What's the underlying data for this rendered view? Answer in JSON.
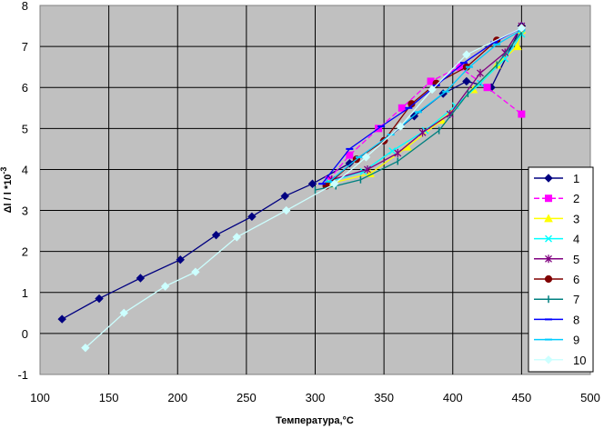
{
  "chart_data": {
    "type": "line",
    "xlabel": "Температура,°С",
    "ylabel_main": "Δl / l *10",
    "ylabel_exp": "-3",
    "xlim": [
      100,
      500
    ],
    "ylim": [
      -1,
      8
    ],
    "x_ticks": [
      100,
      150,
      200,
      250,
      300,
      350,
      400,
      450,
      500
    ],
    "y_ticks": [
      -1,
      0,
      1,
      2,
      3,
      4,
      5,
      6,
      7,
      8
    ],
    "plot_background": "#c0c0c0",
    "grid": true,
    "legend_position": "right",
    "series": [
      {
        "name": "1",
        "color": "#000080",
        "marker": "diamond",
        "dashed": false,
        "x": [
          116,
          143,
          173,
          202,
          228,
          254,
          278,
          298,
          325,
          350,
          372,
          393,
          410,
          428,
          450
        ],
        "y": [
          0.35,
          0.85,
          1.35,
          1.8,
          2.4,
          2.85,
          3.35,
          3.65,
          4.15,
          4.7,
          5.3,
          5.85,
          6.15,
          6.0,
          7.5
        ]
      },
      {
        "name": "2",
        "color": "#ff00ff",
        "marker": "square",
        "dashed": true,
        "x": [
          310,
          325,
          346,
          363,
          384,
          405,
          425,
          450
        ],
        "y": [
          3.75,
          4.35,
          5.0,
          5.5,
          6.15,
          6.5,
          6.0,
          5.35
        ]
      },
      {
        "name": "3",
        "color": "#ffff00",
        "marker": "triangle",
        "dashed": false,
        "x": [
          310,
          340,
          367,
          392,
          415,
          432,
          447,
          450
        ],
        "y": [
          3.65,
          3.9,
          4.55,
          5.2,
          5.95,
          6.55,
          7.0,
          7.4
        ]
      },
      {
        "name": "4",
        "color": "#00ffff",
        "marker": "x",
        "dashed": false,
        "x": [
          310,
          335,
          356,
          380,
          402,
          420,
          438,
          450
        ],
        "y": [
          3.7,
          3.95,
          4.45,
          4.95,
          5.55,
          6.1,
          6.7,
          7.3
        ]
      },
      {
        "name": "5",
        "color": "#800080",
        "marker": "star",
        "dashed": false,
        "x": [
          312,
          338,
          360,
          378,
          398,
          420,
          438,
          450
        ],
        "y": [
          3.75,
          4.0,
          4.4,
          4.9,
          5.35,
          6.35,
          6.85,
          7.5
        ]
      },
      {
        "name": "6",
        "color": "#800000",
        "marker": "circle",
        "dashed": false,
        "x": [
          308,
          330,
          350,
          370,
          388,
          410,
          432,
          450
        ],
        "y": [
          3.6,
          4.25,
          4.7,
          5.6,
          6.1,
          6.5,
          7.15,
          7.45
        ]
      },
      {
        "name": "7",
        "color": "#008080",
        "marker": "plus",
        "dashed": false,
        "x": [
          300,
          315,
          333,
          360,
          390,
          411,
          432,
          450
        ],
        "y": [
          3.5,
          3.6,
          3.75,
          4.2,
          4.95,
          5.85,
          6.55,
          7.35
        ]
      },
      {
        "name": "8",
        "color": "#0000ff",
        "marker": "dash",
        "dashed": false,
        "x": [
          305,
          325,
          348,
          368,
          388,
          408,
          430,
          450
        ],
        "y": [
          3.65,
          4.5,
          5.05,
          5.5,
          6.05,
          6.6,
          7.1,
          7.45
        ]
      },
      {
        "name": "9",
        "color": "#00ccff",
        "marker": "dash",
        "dashed": false,
        "x": [
          310,
          332,
          355,
          375,
          395,
          412,
          432,
          450
        ],
        "y": [
          3.7,
          4.3,
          4.85,
          5.4,
          5.9,
          6.5,
          7.05,
          7.4
        ]
      },
      {
        "name": "10",
        "color": "#ccffff",
        "marker": "diamond",
        "dashed": false,
        "x": [
          133,
          161,
          191,
          213,
          243,
          279,
          314,
          337,
          362,
          385,
          410,
          450
        ],
        "y": [
          -0.35,
          0.5,
          1.15,
          1.5,
          2.35,
          3.0,
          3.65,
          4.3,
          5.05,
          5.95,
          6.8,
          7.45
        ]
      }
    ]
  }
}
